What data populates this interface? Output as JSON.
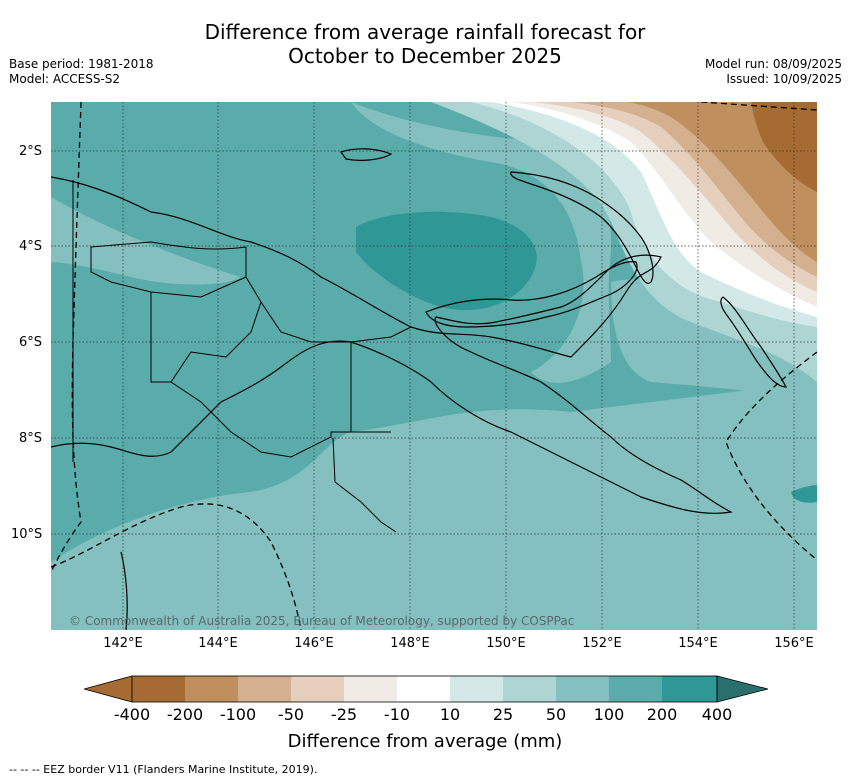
{
  "header": {
    "title_line1": "Difference from average rainfall forecast for",
    "title_line2": "October to December 2025",
    "base_period": "Base period: 1981-2018",
    "model": "Model: ACCESS-S2",
    "model_run": "Model run: 08/09/2025",
    "issued": "Issued: 10/09/2025"
  },
  "map": {
    "copyright": "© Commonwealth of Australia 2025, Bureau of Meteorology, supported by COSPPac",
    "lat_labels": [
      "2°S",
      "4°S",
      "6°S",
      "8°S",
      "10°S"
    ],
    "lon_labels": [
      "142°E",
      "144°E",
      "146°E",
      "148°E",
      "150°E",
      "152°E",
      "154°E",
      "156°E"
    ],
    "colors": {
      "dry_400": "#a56b33",
      "dry_200": "#bf8f5e",
      "dry_100": "#d4b08e",
      "dry_50": "#e6d0bd",
      "dry_25": "#f1ebe6",
      "neutral": "#ffffff",
      "wet_10": "#d3e9e8",
      "wet_25": "#acd5d4",
      "wet_50": "#83c0bf",
      "wet_100": "#5aacab",
      "wet_200": "#2f9896",
      "wet_400": "#2a6f6c"
    }
  },
  "colorbar": {
    "ticks": [
      "-400",
      "-200",
      "-100",
      "-50",
      "-25",
      "-10",
      "10",
      "25",
      "50",
      "100",
      "200",
      "400"
    ],
    "label": "Difference from average (mm)"
  },
  "footnote": "--  --  -- EEZ border V11 (Flanders Marine Institute, 2019)."
}
